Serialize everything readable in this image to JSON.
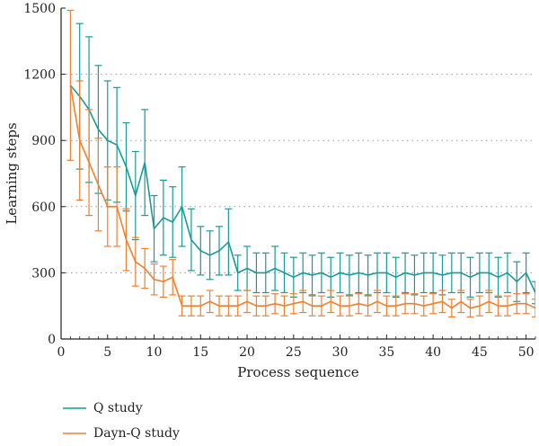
{
  "chart_data": {
    "type": "line",
    "title": "",
    "xlabel": "Process sequence",
    "ylabel": "Learning steps",
    "xlim": [
      0,
      51
    ],
    "ylim": [
      0,
      1500
    ],
    "xticks": [
      0,
      5,
      10,
      15,
      20,
      25,
      30,
      35,
      40,
      45,
      50
    ],
    "yticks": [
      0,
      300,
      600,
      900,
      1200,
      1500
    ],
    "grid": "horizontal-dotted",
    "legend": "bottom-left-outside",
    "x": [
      1,
      2,
      3,
      4,
      5,
      6,
      7,
      8,
      9,
      10,
      11,
      12,
      13,
      14,
      15,
      16,
      17,
      18,
      19,
      20,
      21,
      22,
      23,
      24,
      25,
      26,
      27,
      28,
      29,
      30,
      31,
      32,
      33,
      34,
      35,
      36,
      37,
      38,
      39,
      40,
      41,
      42,
      43,
      44,
      45,
      46,
      47,
      48,
      49,
      50,
      51
    ],
    "series": [
      {
        "name": "Q study",
        "color": "#1a9a96",
        "values": [
          1150,
          1100,
          1040,
          950,
          900,
          880,
          780,
          650,
          800,
          500,
          550,
          530,
          600,
          450,
          400,
          380,
          400,
          440,
          300,
          320,
          300,
          300,
          320,
          300,
          280,
          300,
          290,
          300,
          280,
          300,
          290,
          300,
          290,
          300,
          300,
          280,
          300,
          290,
          300,
          300,
          290,
          300,
          300,
          280,
          300,
          300,
          280,
          300,
          260,
          300,
          210
        ],
        "err": [
          0,
          330,
          330,
          290,
          270,
          260,
          200,
          200,
          240,
          150,
          170,
          160,
          180,
          140,
          110,
          110,
          110,
          150,
          80,
          100,
          90,
          90,
          100,
          90,
          90,
          90,
          90,
          90,
          90,
          90,
          90,
          90,
          90,
          90,
          90,
          90,
          90,
          90,
          90,
          90,
          90,
          90,
          90,
          90,
          90,
          90,
          90,
          90,
          90,
          90,
          50
        ]
      },
      {
        "name": "Dayn-Q study",
        "color": "#f08030",
        "values": [
          1150,
          900,
          800,
          700,
          600,
          600,
          450,
          350,
          320,
          270,
          260,
          280,
          150,
          150,
          150,
          170,
          150,
          150,
          150,
          170,
          150,
          150,
          160,
          150,
          160,
          170,
          150,
          150,
          170,
          150,
          150,
          160,
          150,
          170,
          150,
          150,
          160,
          160,
          150,
          160,
          170,
          140,
          170,
          140,
          150,
          170,
          150,
          150,
          160,
          160,
          140
        ],
        "err": [
          340,
          270,
          240,
          210,
          180,
          180,
          140,
          110,
          90,
          70,
          70,
          80,
          45,
          45,
          45,
          50,
          45,
          45,
          45,
          50,
          45,
          45,
          45,
          45,
          45,
          50,
          45,
          45,
          50,
          45,
          45,
          45,
          45,
          50,
          45,
          45,
          45,
          45,
          45,
          45,
          50,
          40,
          50,
          40,
          45,
          50,
          45,
          45,
          45,
          45,
          40
        ]
      }
    ]
  }
}
